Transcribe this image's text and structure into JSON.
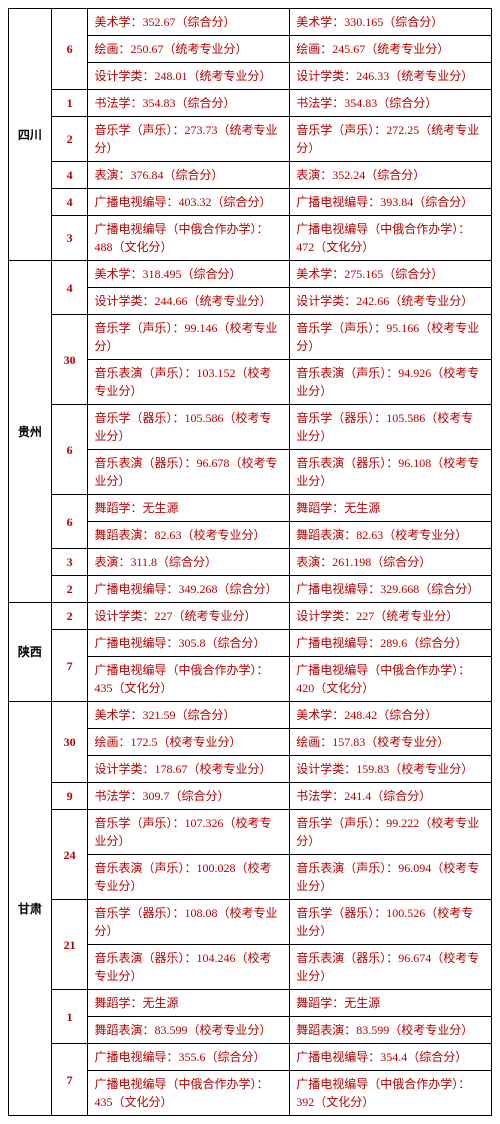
{
  "provinces": [
    {
      "name": "四川",
      "groups": [
        {
          "n": "6",
          "rows": [
            [
              "美术学：352.67（综合分）",
              "美术学：330.165（综合分）"
            ],
            [
              "绘画：250.67（统考专业分）",
              "绘画：245.67（统考专业分）"
            ],
            [
              "设计学类：248.01（统考专业分）",
              "设计学类：246.33（统考专业分）"
            ]
          ]
        },
        {
          "n": "1",
          "rows": [
            [
              "书法学：354.83（综合分）",
              "书法学：354.83（综合分）"
            ]
          ]
        },
        {
          "n": "2",
          "rows": [
            [
              "音乐学（声乐）：273.73（统考专业分）",
              "音乐学（声乐）：272.25（统考专业分）"
            ]
          ]
        },
        {
          "n": "4",
          "rows": [
            [
              "表演：376.84（综合分）",
              "表演：352.24（综合分）"
            ]
          ]
        },
        {
          "n": "4",
          "rows": [
            [
              "广播电视编导：403.32（综合分）",
              "广播电视编导：393.84（综合分）"
            ]
          ]
        },
        {
          "n": "3",
          "rows": [
            [
              "广播电视编导（中俄合作办学）：488（文化分）",
              "广播电视编导（中俄合作办学）：472（文化分）"
            ]
          ]
        }
      ]
    },
    {
      "name": "贵州",
      "groups": [
        {
          "n": "4",
          "rows": [
            [
              "美术学：318.495（综合分）",
              "美术学：275.165（综合分）"
            ],
            [
              "设计学类：244.66（统考专业分）",
              "设计学类：242.66（统考专业分）"
            ]
          ]
        },
        {
          "n": "30",
          "rows": [
            [
              "音乐学（声乐）：99.146（校考专业分）",
              "音乐学（声乐）：95.166（校考专业分）"
            ],
            [
              "音乐表演（声乐）：103.152（校考专业分）",
              "音乐表演（声乐）：94.926（校考专业分）"
            ]
          ]
        },
        {
          "n": "6",
          "rows": [
            [
              "音乐学（器乐）：105.586（校考专业分）",
              "音乐学（器乐）：105.586（校考专业分）"
            ],
            [
              "音乐表演（器乐）：96.678（校考专业分）",
              "音乐表演（器乐）：96.108（校考专业分）"
            ]
          ]
        },
        {
          "n": "6",
          "rows": [
            [
              "舞蹈学：无生源",
              "舞蹈学：无生源"
            ],
            [
              "舞蹈表演：82.63（校考专业分）",
              "舞蹈表演：82.63（校考专业分）"
            ]
          ]
        },
        {
          "n": "3",
          "rows": [
            [
              "表演：311.8（综合分）",
              "表演：261.198（综合分）"
            ]
          ]
        },
        {
          "n": "2",
          "rows": [
            [
              "广播电视编导：349.268（综合分）",
              "广播电视编导：329.668（综合分）"
            ]
          ]
        }
      ]
    },
    {
      "name": "陕西",
      "groups": [
        {
          "n": "2",
          "rows": [
            [
              "设计学类：227（统考专业分）",
              "设计学类：227（统考专业分）"
            ]
          ]
        },
        {
          "n": "7",
          "rows": [
            [
              "广播电视编导：305.8（综合分）",
              "广播电视编导：289.6（综合分）"
            ],
            [
              "广播电视编导（中俄合作办学）：435（文化分）",
              "广播电视编导（中俄合作办学）：420（文化分）"
            ]
          ]
        }
      ]
    },
    {
      "name": "甘肃",
      "groups": [
        {
          "n": "30",
          "rows": [
            [
              "美术学：321.59（综合分）",
              "美术学：248.42（综合分）"
            ],
            [
              "绘画：172.5（校考专业分）",
              "绘画：157.83（校考专业分）"
            ],
            [
              "设计学类：178.67（校考专业分）",
              "设计学类：159.83（校考专业分）"
            ]
          ]
        },
        {
          "n": "9",
          "rows": [
            [
              "书法学：309.7（综合分）",
              "书法学：241.4（综合分）"
            ]
          ]
        },
        {
          "n": "24",
          "rows": [
            [
              "音乐学（声乐）：107.326（校考专业分）",
              "音乐学（声乐）：99.222（校考专业分）"
            ],
            [
              "音乐表演（声乐）：100.028（校考专业分）",
              "音乐表演（声乐）：96.094（校考专业分）"
            ]
          ]
        },
        {
          "n": "21",
          "rows": [
            [
              "音乐学（器乐）：108.08（校考专业分）",
              "音乐学（器乐）：100.526（校考专业分）"
            ],
            [
              "音乐表演（器乐）：104.246（校考专业分）",
              "音乐表演（器乐）：96.674（校考专业分）"
            ]
          ]
        },
        {
          "n": "1",
          "rows": [
            [
              "舞蹈学：无生源",
              "舞蹈学：无生源"
            ],
            [
              "舞蹈表演：83.599（校考专业分）",
              "舞蹈表演：83.599（校考专业分）"
            ]
          ]
        },
        {
          "n": "7",
          "rows": [
            [
              "广播电视编导：355.6（综合分）",
              "广播电视编导：354.4（综合分）"
            ],
            [
              "广播电视编导（中俄合作办学）：435（文化分）",
              "广播电视编导（中俄合作办学）：392（文化分）"
            ]
          ]
        }
      ]
    }
  ]
}
